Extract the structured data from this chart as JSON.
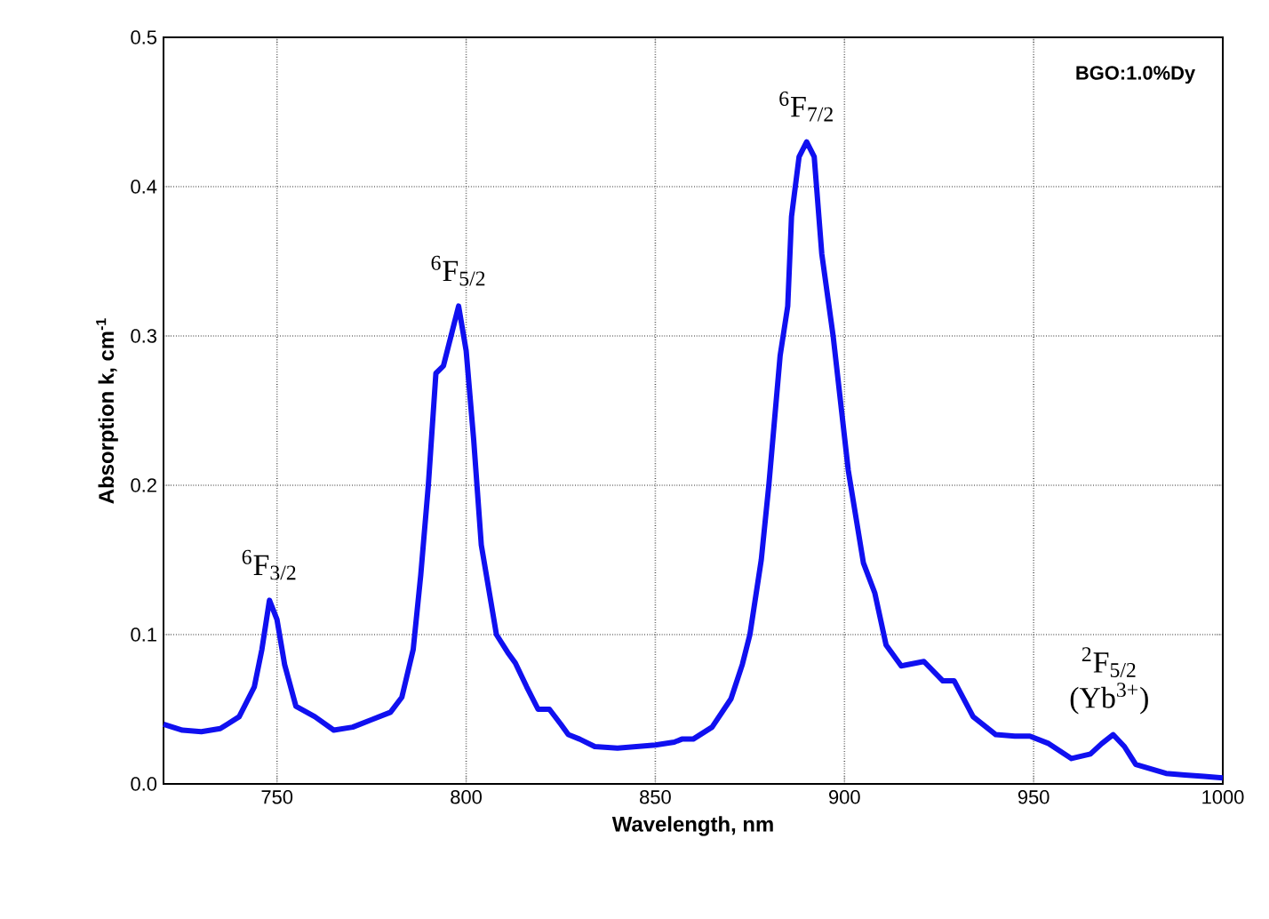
{
  "chart_data": {
    "type": "line",
    "xlabel": "Wavelength, nm",
    "ylabel": "Absorption k, cm$^{-1}$",
    "x": [
      720,
      725,
      730,
      735,
      740,
      744,
      746,
      748,
      750,
      752,
      755,
      760,
      765,
      770,
      775,
      780,
      783,
      786,
      788,
      790,
      792,
      794,
      796,
      798,
      800,
      802,
      804,
      806,
      808,
      811,
      813,
      816,
      819,
      822,
      825,
      827,
      830,
      834,
      840,
      845,
      850,
      855,
      857,
      860,
      865,
      870,
      873,
      875,
      878,
      880,
      883,
      885,
      886,
      888,
      890,
      892,
      894,
      897,
      901,
      905,
      908,
      911,
      915,
      921,
      926,
      929,
      934,
      940,
      945,
      949,
      954,
      960,
      965,
      968,
      971,
      974,
      977,
      981,
      985,
      990,
      995,
      1000
    ],
    "series": [
      {
        "color": "#1010f0",
        "values": [
          0.04,
          0.036,
          0.035,
          0.037,
          0.045,
          0.065,
          0.09,
          0.123,
          0.11,
          0.08,
          0.052,
          0.045,
          0.036,
          0.038,
          0.043,
          0.048,
          0.058,
          0.09,
          0.14,
          0.2,
          0.275,
          0.28,
          0.3,
          0.32,
          0.29,
          0.23,
          0.16,
          0.13,
          0.1,
          0.088,
          0.081,
          0.065,
          0.05,
          0.05,
          0.04,
          0.033,
          0.03,
          0.025,
          0.024,
          0.025,
          0.026,
          0.028,
          0.03,
          0.03,
          0.038,
          0.057,
          0.08,
          0.1,
          0.15,
          0.2,
          0.287,
          0.32,
          0.38,
          0.42,
          0.43,
          0.42,
          0.355,
          0.3,
          0.21,
          0.148,
          0.128,
          0.093,
          0.079,
          0.082,
          0.069,
          0.069,
          0.045,
          0.033,
          0.032,
          0.032,
          0.027,
          0.017,
          0.02,
          0.027,
          0.033,
          0.025,
          0.013,
          0.01,
          0.007,
          0.006,
          0.005,
          0.004
        ]
      }
    ],
    "xlim": [
      720,
      1000
    ],
    "xticks": [
      750,
      800,
      850,
      900,
      950,
      1000
    ],
    "ylim": [
      0,
      0.5
    ],
    "yticks": [
      {
        "value": 0,
        "label": "0.0"
      },
      0.1,
      0.2,
      0.3,
      0.4,
      0.5
    ],
    "grid": true,
    "annotations": [
      "BGO:1.0%Dy",
      {
        "text": "$^{6}$F$_{3/2}$",
        "x": 748,
        "y": 0.123
      },
      {
        "text": "$^{6}$F$_{5/2}$",
        "x": 798,
        "y": 0.32
      },
      {
        "text": "$^{6}$F$_{7/2}$",
        "x": 890,
        "y": 0.43
      },
      {
        "text": "$^{2}$F$_{5/2}$ (Yb$^{3+}$)",
        "x": 970,
        "y": 0.033
      }
    ]
  }
}
